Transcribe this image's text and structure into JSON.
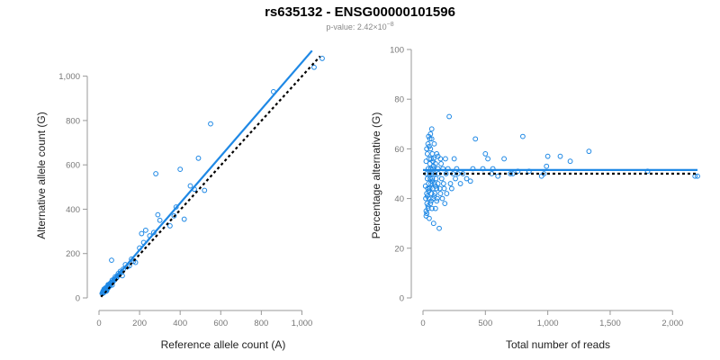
{
  "header": {
    "title": "rs635132 - ENSG00000101596",
    "subtitle_prefix": "p-value: 2.42×10",
    "subtitle_exponent": "−8"
  },
  "colors": {
    "points": "#1E88E5",
    "fit": "#1E88E5",
    "reference": "#000000"
  },
  "chart_data": [
    {
      "type": "scatter",
      "xlabel": "Reference allele count (A)",
      "ylabel": "Alternative allele count (G)",
      "xlim": [
        0,
        1100
      ],
      "ylim": [
        0,
        1100
      ],
      "xticks": [
        0,
        200,
        400,
        600,
        800,
        1000
      ],
      "yticks": [
        0,
        200,
        400,
        600,
        800,
        1000
      ],
      "xtick_labels": [
        "0",
        "200",
        "400",
        "600",
        "800",
        "1,000"
      ],
      "ytick_labels": [
        "0",
        "200",
        "400",
        "600",
        "800",
        "1,000"
      ],
      "grid": false,
      "fit_line": {
        "x": [
          10,
          1050
        ],
        "y": [
          15,
          1115
        ]
      },
      "reference_line": {
        "x": [
          10,
          1090
        ],
        "y": [
          5,
          1090
        ]
      },
      "points": {
        "x": [
          15,
          18,
          20,
          22,
          24,
          26,
          28,
          30,
          32,
          35,
          38,
          40,
          42,
          45,
          48,
          50,
          55,
          60,
          62,
          65,
          70,
          72,
          75,
          80,
          85,
          90,
          95,
          100,
          105,
          110,
          115,
          120,
          130,
          140,
          150,
          160,
          170,
          180,
          200,
          210,
          220,
          230,
          250,
          270,
          280,
          290,
          300,
          350,
          370,
          380,
          400,
          420,
          450,
          470,
          490,
          520,
          550,
          860,
          1060,
          1100,
          25,
          35,
          45,
          55,
          65,
          30,
          40,
          50,
          20,
          28,
          38,
          48,
          58,
          68,
          78,
          88
        ],
        "y": [
          20,
          25,
          30,
          22,
          35,
          28,
          40,
          30,
          45,
          38,
          32,
          50,
          42,
          55,
          48,
          60,
          65,
          70,
          170,
          58,
          75,
          80,
          85,
          95,
          90,
          100,
          110,
          105,
          120,
          115,
          100,
          130,
          150,
          140,
          145,
          175,
          165,
          160,
          225,
          290,
          250,
          305,
          280,
          295,
          560,
          375,
          350,
          325,
          370,
          410,
          580,
          355,
          505,
          490,
          630,
          485,
          785,
          930,
          1040,
          1080,
          40,
          30,
          60,
          55,
          80,
          35,
          45,
          52,
          30,
          36,
          44,
          50,
          62,
          72,
          82,
          92
        ]
      }
    },
    {
      "type": "scatter",
      "xlabel": "Total number of reads",
      "ylabel": "Percentage alternative (G)",
      "xlim": [
        0,
        2200
      ],
      "ylim": [
        0,
        100
      ],
      "xticks": [
        0,
        500,
        1000,
        1500,
        2000
      ],
      "yticks": [
        0,
        20,
        40,
        60,
        80,
        100
      ],
      "xtick_labels": [
        "0",
        "500",
        "1,000",
        "1,500",
        "2,000"
      ],
      "ytick_labels": [
        "0",
        "20",
        "40",
        "60",
        "80",
        "100"
      ],
      "grid": false,
      "fit_line": {
        "x": [
          0,
          2200
        ],
        "y": [
          51.5,
          51.5
        ]
      },
      "reference_line": {
        "x": [
          0,
          2200
        ],
        "y": [
          50,
          50
        ]
      },
      "points": {
        "x": [
          20,
          22,
          25,
          25,
          28,
          30,
          30,
          32,
          35,
          35,
          38,
          40,
          40,
          42,
          45,
          45,
          48,
          50,
          50,
          52,
          55,
          55,
          58,
          60,
          60,
          62,
          65,
          65,
          68,
          70,
          70,
          72,
          75,
          75,
          78,
          80,
          80,
          85,
          85,
          90,
          90,
          95,
          95,
          100,
          100,
          105,
          110,
          110,
          115,
          120,
          120,
          125,
          130,
          135,
          140,
          140,
          145,
          150,
          155,
          160,
          165,
          170,
          175,
          180,
          185,
          190,
          200,
          210,
          220,
          230,
          240,
          250,
          260,
          270,
          280,
          300,
          320,
          350,
          380,
          400,
          420,
          480,
          500,
          520,
          550,
          560,
          600,
          650,
          700,
          720,
          760,
          800,
          850,
          950,
          970,
          990,
          1000,
          1100,
          1180,
          1330,
          1800,
          2180,
          2200,
          25,
          30,
          35,
          40,
          45,
          50,
          55,
          60,
          65,
          70,
          75,
          80,
          85,
          90,
          100,
          110,
          120
        ],
        "y": [
          45,
          40,
          55,
          35,
          50,
          60,
          42,
          38,
          58,
          48,
          44,
          62,
          36,
          52,
          65,
          46,
          40,
          56,
          32,
          50,
          54,
          44,
          48,
          60,
          38,
          52,
          46,
          56,
          42,
          64,
          50,
          36,
          48,
          58,
          44,
          52,
          40,
          56,
          30,
          46,
          62,
          50,
          42,
          54,
          36,
          48,
          44,
          58,
          40,
          52,
          46,
          50,
          28,
          44,
          56,
          42,
          54,
          48,
          40,
          52,
          46,
          44,
          38,
          56,
          50,
          42,
          52,
          73,
          46,
          44,
          50,
          56,
          48,
          52,
          50,
          46,
          50,
          48,
          47,
          52,
          64,
          52,
          58,
          56,
          50,
          52,
          49,
          56,
          50,
          50,
          51,
          65,
          51,
          49,
          50,
          53,
          57,
          57,
          55,
          59,
          51,
          49,
          49,
          33,
          34,
          41,
          37,
          43,
          61,
          64,
          66,
          39,
          68,
          47,
          55,
          53,
          41,
          45,
          39,
          57
        ]
      }
    }
  ]
}
